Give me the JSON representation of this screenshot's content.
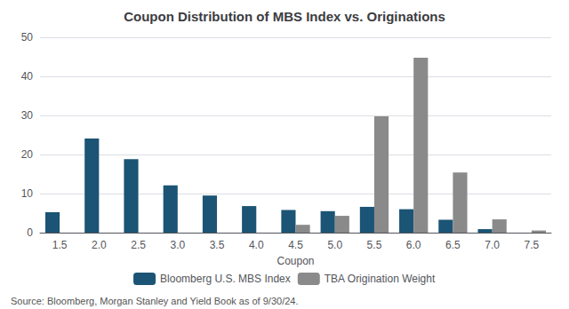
{
  "chart_data": {
    "type": "bar",
    "title": "Coupon Distribution of MBS Index vs. Originations",
    "xlabel": "Coupon",
    "source": "Source: Bloomberg, Morgan Stanley and Yield Book as of 9/30/24.",
    "categories": [
      "1.5",
      "2.0",
      "2.5",
      "3.0",
      "3.5",
      "4.0",
      "4.5",
      "5.0",
      "5.5",
      "6.0",
      "6.5",
      "7.0",
      "7.5"
    ],
    "series": [
      {
        "name": "Bloomberg U.S. MBS Index",
        "color": "#1b5474",
        "values": [
          5.2,
          24.1,
          18.8,
          12.1,
          9.5,
          6.8,
          5.8,
          5.5,
          6.6,
          6.0,
          3.3,
          0.9,
          0.0
        ]
      },
      {
        "name": "TBA Origination Weight",
        "color": "#8a8a8a",
        "values": [
          0.0,
          0.0,
          0.0,
          0.0,
          0.0,
          0.0,
          2.0,
          4.3,
          29.8,
          44.8,
          15.4,
          3.4,
          0.55
        ]
      }
    ],
    "ylim": [
      0,
      50
    ],
    "yticks": [
      0,
      10,
      20,
      30,
      40,
      50
    ],
    "grid": true,
    "legend": "bottom"
  }
}
